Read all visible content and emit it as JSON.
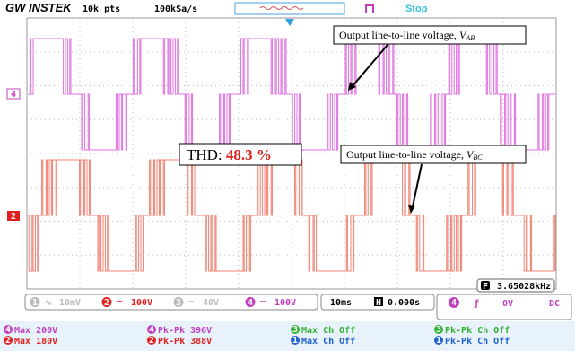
{
  "header": {
    "brand": "GW INSTEK",
    "record_length": "10k pts",
    "sample_rate": "100kSa/s",
    "status": "Stop"
  },
  "annotations": {
    "vab": {
      "text": "Output line-to-line voltage, ",
      "symbol": "V",
      "subscript": "AB"
    },
    "thd": {
      "label": "THD: ",
      "value": "48.3 %"
    },
    "vbc": {
      "text": "Output line-to-line voltage, ",
      "symbol": "V",
      "subscript": "BC"
    }
  },
  "channel_markers": {
    "ch4": "4",
    "ch2": "2"
  },
  "channels": [
    {
      "number": "1",
      "coupling": "∿",
      "scale": "10mV"
    },
    {
      "number": "2",
      "coupling": "═",
      "scale": "100V"
    },
    {
      "number": "3",
      "coupling": "═",
      "scale": "40V"
    },
    {
      "number": "4",
      "coupling": "═",
      "scale": "100V"
    }
  ],
  "timebase": {
    "scale": "10ms",
    "position_icon": "H",
    "position": "0.000s"
  },
  "trigger": {
    "source": "4",
    "slope": "ƒ",
    "level": "0V",
    "coupling": "DC",
    "freq_icon": "F",
    "frequency": "3.65028kHz"
  },
  "measurements": [
    [
      {
        "ch": "4",
        "text": "Max 200V"
      },
      {
        "ch": "4",
        "text": "Pk-Pk 396V"
      },
      {
        "ch": "3",
        "text": "Max Ch Off"
      },
      {
        "ch": "3",
        "text": "Pk-Pk Ch Off"
      }
    ],
    [
      {
        "ch": "2",
        "text": "Max 180V"
      },
      {
        "ch": "2",
        "text": "Pk-Pk 388V"
      },
      {
        "ch": "1",
        "text": "Max Ch Off"
      },
      {
        "ch": "1",
        "text": "Pk-Pk Ch Off"
      }
    ]
  ]
}
